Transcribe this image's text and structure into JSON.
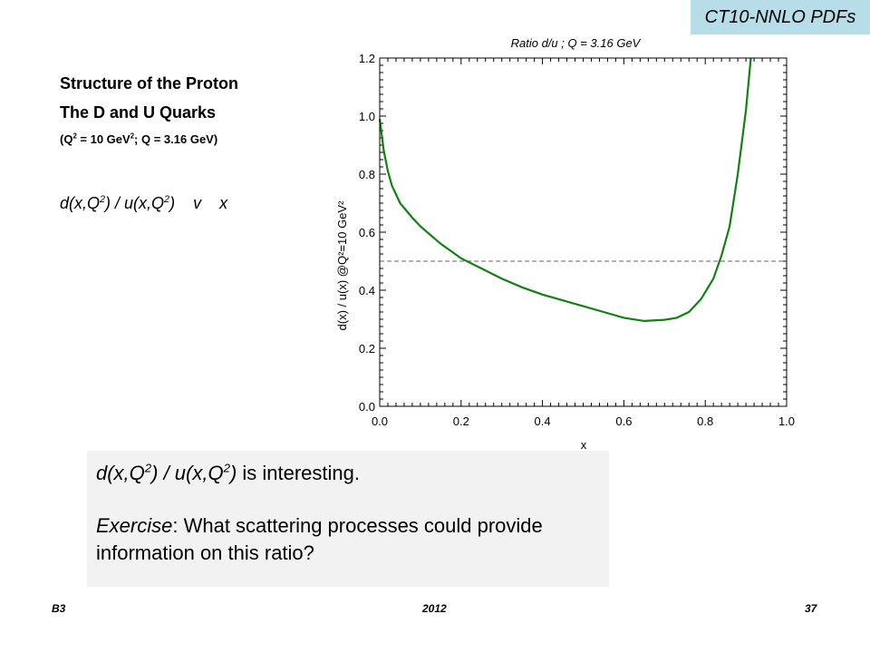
{
  "tag": "CT10-NNLO PDFs",
  "heading1": "Structure of the Proton",
  "heading2": "The D and U Quarks",
  "subtitle": {
    "a": "(Q",
    "b": "2",
    "c": " = 10 GeV",
    "d": "2",
    "e": "; Q = 3.16 GeV)"
  },
  "ratio": {
    "d_open": "d(x,Q",
    "two": "2",
    "mid": ") / u(x,Q",
    "close": ")",
    "v": "v",
    "x": "x"
  },
  "note": {
    "line1_rest": " is interesting.",
    "exercise_word": "Exercise",
    "exercise_rest": ":  What scattering processes could provide information on this ratio?"
  },
  "footer": {
    "left": "B3",
    "center": "2012",
    "right": "37"
  },
  "chart_data": {
    "type": "line",
    "title": "Ratio d/u ; Q = 3.16 GeV",
    "xlabel": "x",
    "ylabel": "d(x) / u(x) @Q²=10 GeV²",
    "xlim": [
      0.0,
      1.0
    ],
    "ylim": [
      0.0,
      1.2
    ],
    "xticks": [
      "0.0",
      "0.2",
      "0.4",
      "0.6",
      "0.8",
      "1.0"
    ],
    "yticks": [
      "0.0",
      "0.2",
      "0.4",
      "0.6",
      "0.8",
      "1.0",
      "1.2"
    ],
    "reference_line": {
      "y": 0.5,
      "style": "dashed",
      "color": "#999999"
    },
    "series": [
      {
        "color": "#138013",
        "x": [
          0.0,
          0.01,
          0.02,
          0.03,
          0.05,
          0.08,
          0.1,
          0.15,
          0.2,
          0.25,
          0.3,
          0.35,
          0.4,
          0.45,
          0.5,
          0.55,
          0.6,
          0.65,
          0.7,
          0.73,
          0.76,
          0.79,
          0.82,
          0.84,
          0.86,
          0.88,
          0.9,
          0.912
        ],
        "y": [
          0.99,
          0.88,
          0.81,
          0.76,
          0.7,
          0.65,
          0.62,
          0.56,
          0.51,
          0.475,
          0.44,
          0.41,
          0.385,
          0.365,
          0.345,
          0.325,
          0.305,
          0.294,
          0.298,
          0.305,
          0.325,
          0.37,
          0.44,
          0.52,
          0.62,
          0.8,
          1.02,
          1.2
        ]
      }
    ],
    "grid": false
  }
}
